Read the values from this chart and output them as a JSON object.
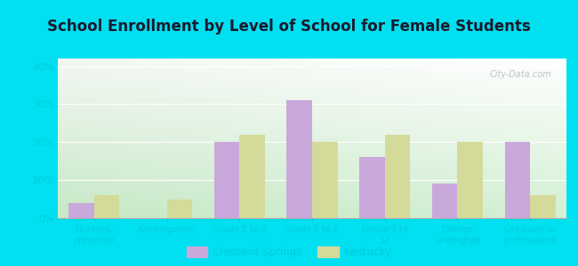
{
  "title": "School Enrollment by Level of School for Female Students",
  "categories": [
    "Nursery,\npreschool",
    "Kindergarten",
    "Grade 1 to 4",
    "Grade 5 to 8",
    "Grade 9 to\n12",
    "College\nundergrad",
    "Graduate or\nprofessional"
  ],
  "crescent_springs": [
    4,
    0,
    20,
    31,
    16,
    9,
    20
  ],
  "kentucky": [
    6,
    5,
    22,
    20,
    22,
    20,
    6
  ],
  "cs_color": "#c9a8dc",
  "ky_color": "#d4db9a",
  "background_outer": "#00e0f0",
  "grad_top_left": "#d8efd8",
  "grad_top_right": "#f0f8f0",
  "grad_bottom": "#e8f4e0",
  "ylabel_ticks": [
    "0%",
    "10%",
    "20%",
    "30%",
    "40%"
  ],
  "ytick_vals": [
    0,
    10,
    20,
    30,
    40
  ],
  "ylim": [
    0,
    42
  ],
  "legend_labels": [
    "Crescent Springs",
    "Kentucky"
  ],
  "watermark": "City-Data.com",
  "bar_width": 0.35,
  "title_color": "#1a1a2e",
  "tick_color": "#888888",
  "label_color": "#00ccdd"
}
